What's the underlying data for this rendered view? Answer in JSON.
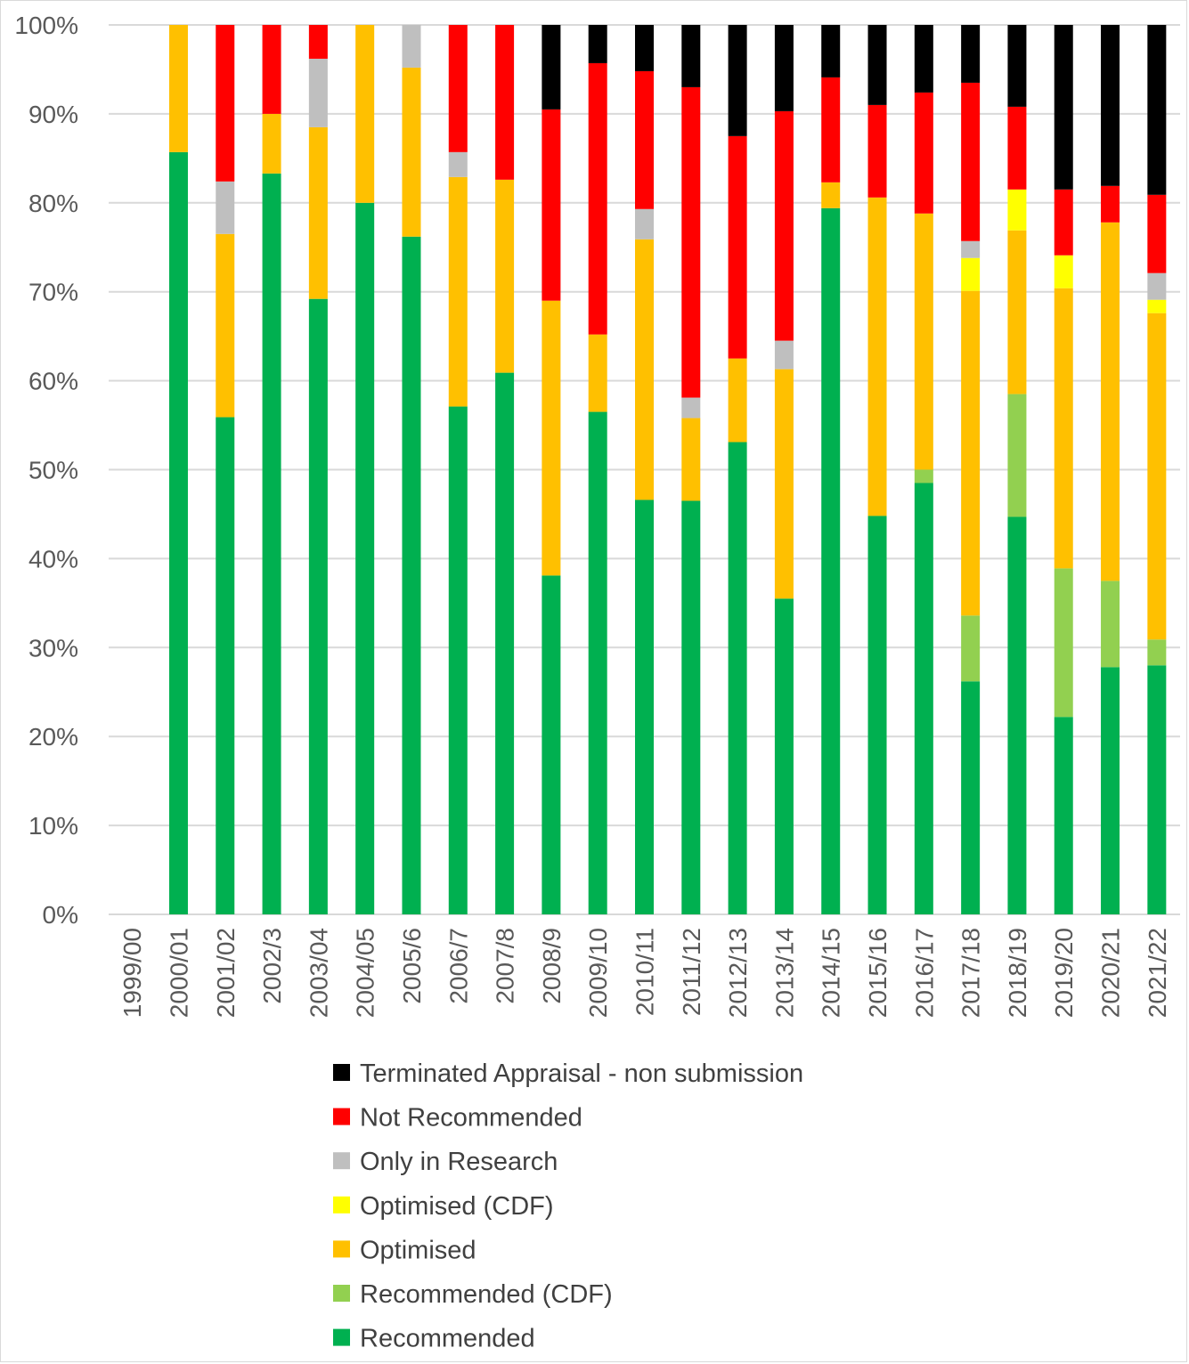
{
  "chart_data": {
    "type": "bar",
    "stacked": true,
    "percent_stacked": true,
    "title": "",
    "xlabel": "",
    "ylabel": "",
    "ylim": [
      0,
      100
    ],
    "ytick_labels": [
      "0%",
      "10%",
      "20%",
      "30%",
      "40%",
      "50%",
      "60%",
      "70%",
      "80%",
      "90%",
      "100%"
    ],
    "grid": true,
    "legend_position": "bottom",
    "categories": [
      "1999/00",
      "2000/01",
      "2001/02",
      "2002/3",
      "2003/04",
      "2004/05",
      "2005/6",
      "2006/7",
      "2007/8",
      "2008/9",
      "2009/10",
      "2010/11",
      "2011/12",
      "2012/13",
      "2013/14",
      "2014/15",
      "2015/16",
      "2016/17",
      "2017/18",
      "2018/19",
      "2019/20",
      "2020/21",
      "2021/22"
    ],
    "series": [
      {
        "name": "Recommended",
        "color": "#00b050",
        "values": [
          0,
          85.7,
          55.9,
          83.3,
          69.2,
          80.0,
          76.2,
          57.1,
          60.9,
          38.1,
          56.5,
          46.6,
          46.5,
          53.1,
          35.5,
          79.4,
          44.8,
          48.5,
          26.2,
          44.7,
          22.2,
          27.8,
          28.0
        ]
      },
      {
        "name": "Recommended (CDF)",
        "color": "#92d050",
        "values": [
          0,
          0,
          0,
          0,
          0,
          0,
          0,
          0,
          0,
          0,
          0,
          0,
          0,
          0,
          0,
          0,
          0,
          1.5,
          7.4,
          13.8,
          16.7,
          9.7,
          2.9
        ]
      },
      {
        "name": "Optimised",
        "color": "#ffc000",
        "values": [
          0,
          14.3,
          20.6,
          6.7,
          19.3,
          20.0,
          19.0,
          25.8,
          21.7,
          30.9,
          8.7,
          29.3,
          9.3,
          9.4,
          25.8,
          2.9,
          35.8,
          28.8,
          36.5,
          18.4,
          31.5,
          40.3,
          36.7
        ]
      },
      {
        "name": "Optimised (CDF)",
        "color": "#ffff00",
        "values": [
          0,
          0,
          0,
          0,
          0,
          0,
          0,
          0,
          0,
          0,
          0,
          0,
          0,
          0,
          0,
          0,
          0,
          0,
          3.7,
          4.6,
          3.7,
          0,
          1.5
        ]
      },
      {
        "name": "Only in Research",
        "color": "#bfbfbf",
        "values": [
          0,
          0,
          5.9,
          0,
          7.7,
          0,
          4.8,
          2.8,
          0,
          0,
          0,
          3.4,
          2.3,
          0,
          3.2,
          0,
          0,
          0,
          1.9,
          0,
          0,
          0,
          3.0
        ]
      },
      {
        "name": "Not Recommended",
        "color": "#ff0000",
        "values": [
          0,
          0,
          17.6,
          10.0,
          3.8,
          0,
          0,
          14.3,
          17.4,
          21.5,
          30.5,
          15.5,
          34.9,
          25.0,
          25.8,
          11.8,
          10.4,
          13.6,
          17.8,
          9.3,
          7.4,
          4.1,
          8.8
        ]
      },
      {
        "name": "Terminated Appraisal - non submission",
        "color": "#000000",
        "values": [
          0,
          0,
          0,
          0,
          0,
          0,
          0,
          0,
          0,
          9.5,
          4.3,
          5.2,
          7.0,
          12.5,
          9.7,
          5.9,
          9.0,
          7.6,
          6.5,
          9.2,
          18.5,
          18.1,
          19.1
        ]
      }
    ],
    "legend_order": [
      "Terminated Appraisal - non submission",
      "Not Recommended",
      "Only in Research",
      "Optimised (CDF)",
      "Optimised",
      "Recommended (CDF)",
      "Recommended"
    ]
  }
}
